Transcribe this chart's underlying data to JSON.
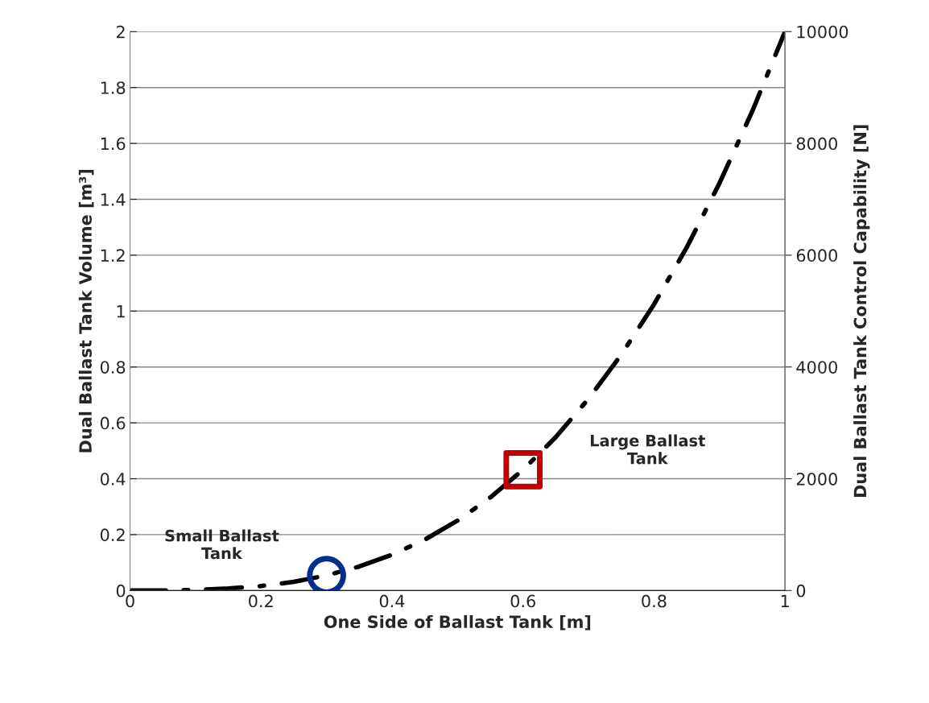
{
  "chart_data": {
    "type": "line",
    "xlabel": "One Side of Ballast Tank [m]",
    "ylabel": "Dual Ballast Tank Volume [m³]",
    "y2label": "Dual Ballast Tank Control Capability [N]",
    "xlim": [
      0,
      1
    ],
    "xticks": [
      0,
      0.2,
      0.4,
      0.6,
      0.8,
      1
    ],
    "ylim": [
      0,
      2
    ],
    "yticks": [
      0,
      0.2,
      0.4,
      0.6,
      0.8,
      1,
      1.2,
      1.4,
      1.6,
      1.8,
      2
    ],
    "y2lim": [
      0,
      10000
    ],
    "y2ticks": [
      0,
      2000,
      4000,
      6000,
      8000,
      10000
    ],
    "grid": "y",
    "legend": false,
    "series": [
      {
        "color": "#000000",
        "line_style": "dashdot",
        "marker": "none",
        "x": [
          0,
          0.05,
          0.1,
          0.15,
          0.2,
          0.25,
          0.3,
          0.35,
          0.4,
          0.45,
          0.5,
          0.55,
          0.6,
          0.65,
          0.7,
          0.75,
          0.8,
          0.85,
          0.9,
          0.95,
          1
        ],
        "values": [
          0,
          0,
          0.002,
          0.007,
          0.016,
          0.031,
          0.054,
          0.086,
          0.128,
          0.182,
          0.25,
          0.333,
          0.432,
          0.549,
          0.686,
          0.844,
          1.024,
          1.228,
          1.458,
          1.715,
          2
        ]
      },
      {
        "type": "scatter",
        "color": "#002f8e",
        "marker": "circle",
        "x": [
          0.3
        ],
        "values": [
          0.054
        ]
      },
      {
        "type": "scatter",
        "color": "#c00000",
        "marker": "square",
        "x": [
          0.6
        ],
        "values": [
          0.432
        ]
      }
    ],
    "annotations": [
      "Small Ballast\nTank",
      "Large Ballast\nTank"
    ]
  }
}
